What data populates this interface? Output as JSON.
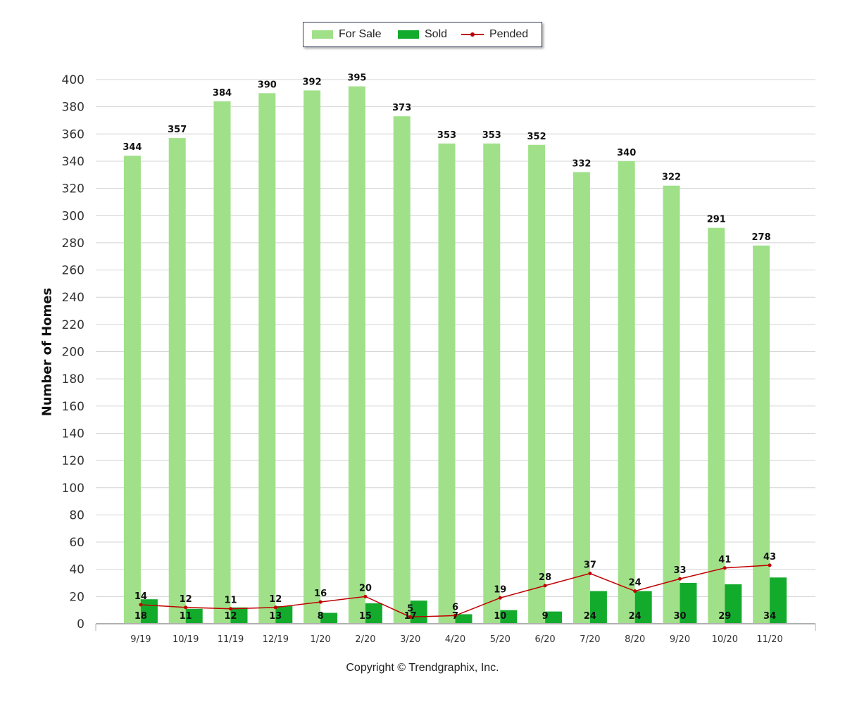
{
  "legend": {
    "for_sale": "For Sale",
    "sold": "Sold",
    "pended": "Pended"
  },
  "copyright": "Copyright © Trendgraphix, Inc.",
  "colors": {
    "for_sale": "#a0e089",
    "sold": "#13ab2c",
    "pended": "#c00000",
    "grid": "#d4d4d4"
  },
  "chart_data": {
    "type": "bar",
    "ylabel": "Number of Homes",
    "xlabel": "",
    "ylim": [
      0,
      400
    ],
    "ytick_step": 20,
    "grid": true,
    "legend_position": "top-center",
    "categories": [
      "9/19",
      "10/19",
      "11/19",
      "12/19",
      "1/20",
      "2/20",
      "3/20",
      "4/20",
      "5/20",
      "6/20",
      "7/20",
      "8/20",
      "9/20",
      "10/20",
      "11/20"
    ],
    "series": [
      {
        "name": "For Sale",
        "type": "bar",
        "values": [
          344,
          357,
          384,
          390,
          392,
          395,
          373,
          353,
          353,
          352,
          332,
          340,
          322,
          291,
          278
        ]
      },
      {
        "name": "Sold",
        "type": "bar",
        "values": [
          18,
          11,
          12,
          13,
          8,
          15,
          17,
          7,
          10,
          9,
          24,
          24,
          30,
          29,
          34
        ]
      },
      {
        "name": "Pended",
        "type": "line",
        "values": [
          14,
          12,
          11,
          12,
          16,
          20,
          5,
          6,
          19,
          28,
          37,
          24,
          33,
          41,
          43
        ]
      }
    ]
  }
}
